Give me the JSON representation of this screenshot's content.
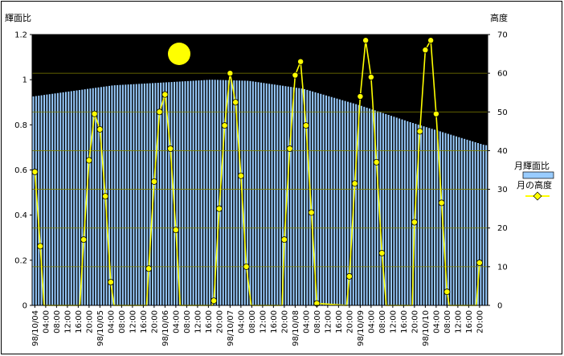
{
  "chart_data": {
    "type": "bar+line",
    "title": "",
    "ylabel_left": "輝面比",
    "ylabel_right": "高度",
    "ylim_left": [
      0,
      1.2
    ],
    "yticks_left": [
      "0",
      "0.2",
      "0.4",
      "0.6",
      "0.8",
      "1",
      "1.2"
    ],
    "ylim_right": [
      0,
      70
    ],
    "yticks_right": [
      "0",
      "10",
      "20",
      "30",
      "40",
      "50",
      "60",
      "70"
    ],
    "hours_per_step": 2,
    "x_tick_labels": [
      "98/10/04",
      "04:00",
      "08:00",
      "12:00",
      "16:00",
      "20:00",
      "98/10/05",
      "04:00",
      "08:00",
      "12:00",
      "16:00",
      "20:00",
      "98/10/06",
      "04:00",
      "08:00",
      "12:00",
      "16:00",
      "20:00",
      "98/10/07",
      "04:00",
      "08:00",
      "12:00",
      "16:00",
      "20:00",
      "98/10/08",
      "04:00",
      "08:00",
      "12:00",
      "16:00",
      "20:00",
      "98/10/09",
      "04:00",
      "08:00",
      "12:00",
      "16:00",
      "20:00",
      "98/10/10",
      "04:00",
      "08:00",
      "12:00",
      "16:00",
      "20:00"
    ],
    "legend": {
      "position": "right",
      "bar_label": "月輝面比",
      "line_label": "月の高度"
    },
    "moon_icon": "full-moon",
    "colors": {
      "plot_bg": "#000000",
      "bar": "#99ccff",
      "line": "#ffff00",
      "marker": "#ffff00",
      "marker_edge": "#000000",
      "grid": "#808000"
    },
    "phase_series": {
      "name": "月輝面比",
      "points": [
        [
          0,
          0.925
        ],
        [
          30,
          0.975
        ],
        [
          52,
          0.99
        ],
        [
          66,
          1.0
        ],
        [
          80,
          0.995
        ],
        [
          100,
          0.96
        ],
        [
          120,
          0.89
        ],
        [
          140,
          0.81
        ],
        [
          167,
          0.71
        ]
      ]
    },
    "altitude_series": {
      "name": "月の高度",
      "points": [
        [
          0,
          34.5
        ],
        [
          1,
          15.3
        ],
        [
          1.7,
          0
        ],
        [
          8.3,
          0
        ],
        [
          9,
          17
        ],
        [
          10,
          37.5
        ],
        [
          11,
          49.5
        ],
        [
          12,
          45.5
        ],
        [
          13,
          28.2
        ],
        [
          14,
          6
        ],
        [
          14.6,
          0
        ],
        [
          20.6,
          0
        ],
        [
          21,
          9.5
        ],
        [
          22,
          32
        ],
        [
          23,
          50
        ],
        [
          24,
          54.5
        ],
        [
          25,
          40.5
        ],
        [
          26,
          19.5
        ],
        [
          26.8,
          0
        ],
        [
          32.7,
          0
        ],
        [
          33,
          1.2
        ],
        [
          34,
          25
        ],
        [
          35,
          46.5
        ],
        [
          36,
          60
        ],
        [
          37,
          52.5
        ],
        [
          38,
          33.5
        ],
        [
          39,
          10
        ],
        [
          39.9,
          0
        ],
        [
          45.6,
          0
        ],
        [
          46,
          17
        ],
        [
          47,
          40.5
        ],
        [
          48,
          59.5
        ],
        [
          49,
          63
        ],
        [
          50,
          46.5
        ],
        [
          51,
          24
        ],
        [
          52,
          0.5
        ],
        [
          57.5,
          0
        ],
        [
          58,
          7.5
        ],
        [
          59,
          31.5
        ],
        [
          60,
          54
        ],
        [
          61,
          68.5
        ],
        [
          62,
          59
        ],
        [
          63,
          37
        ],
        [
          64,
          13.5
        ],
        [
          64.8,
          0
        ],
        [
          69.6,
          0
        ],
        [
          70,
          21.5
        ],
        [
          71,
          45
        ],
        [
          72,
          66
        ],
        [
          73,
          68.5
        ],
        [
          74,
          49.5
        ],
        [
          75,
          26.5
        ],
        [
          76,
          3.5
        ],
        [
          76.4,
          0
        ],
        [
          81.4,
          0
        ],
        [
          82,
          11
        ]
      ]
    }
  }
}
